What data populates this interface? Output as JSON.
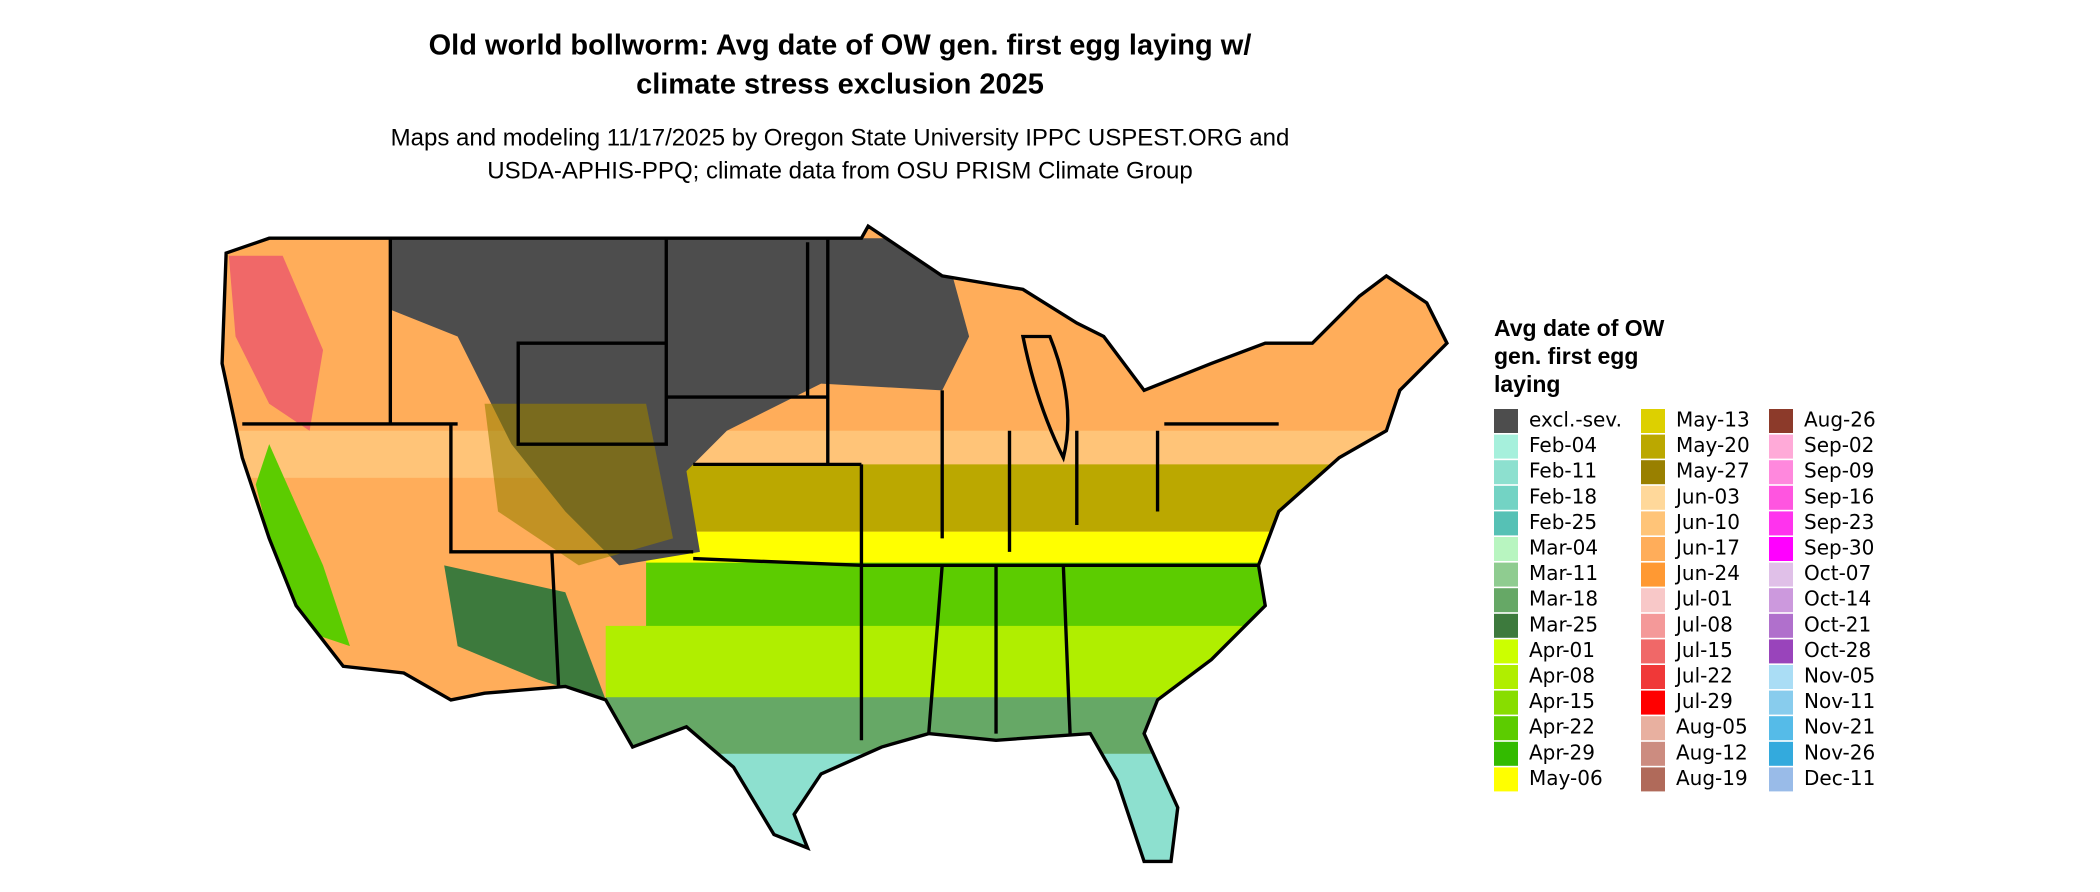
{
  "title": [
    "Old world bollworm: Avg date of OW gen. first egg laying w/",
    "climate stress exclusion 2025"
  ],
  "subtitle": [
    "Maps and modeling 11/17/2025 by Oregon State University IPPC USPEST.ORG and",
    "USDA-APHIS-PPQ; climate data from OSU PRISM Climate Group"
  ],
  "legend": {
    "title": [
      "Avg date of OW",
      "gen. first egg",
      "laying"
    ],
    "items": [
      {
        "label": "excl.-sev.",
        "color": "#4d4d4d"
      },
      {
        "label": "Feb-04",
        "color": "#a6f0dc"
      },
      {
        "label": "Feb-11",
        "color": "#8de0cf"
      },
      {
        "label": "Feb-18",
        "color": "#73d3c4"
      },
      {
        "label": "Feb-25",
        "color": "#56c1b5"
      },
      {
        "label": "Mar-04",
        "color": "#b8f5c0"
      },
      {
        "label": "Mar-11",
        "color": "#8fcc90"
      },
      {
        "label": "Mar-18",
        "color": "#66a866"
      },
      {
        "label": "Mar-25",
        "color": "#3d7a3d"
      },
      {
        "label": "Apr-01",
        "color": "#ccff00"
      },
      {
        "label": "Apr-08",
        "color": "#b0ee00"
      },
      {
        "label": "Apr-15",
        "color": "#88dd00"
      },
      {
        "label": "Apr-22",
        "color": "#5ccc00"
      },
      {
        "label": "Apr-29",
        "color": "#33bb00"
      },
      {
        "label": "May-06",
        "color": "#ffff00"
      },
      {
        "label": "May-13",
        "color": "#ddd000"
      },
      {
        "label": "May-20",
        "color": "#bba800"
      },
      {
        "label": "May-27",
        "color": "#998000"
      },
      {
        "label": "Jun-03",
        "color": "#ffd89a"
      },
      {
        "label": "Jun-10",
        "color": "#ffc478"
      },
      {
        "label": "Jun-17",
        "color": "#ffad5a"
      },
      {
        "label": "Jun-24",
        "color": "#ff9933"
      },
      {
        "label": "Jul-01",
        "color": "#f8c8c8"
      },
      {
        "label": "Jul-08",
        "color": "#f49999"
      },
      {
        "label": "Jul-15",
        "color": "#f06868"
      },
      {
        "label": "Jul-22",
        "color": "#f03838"
      },
      {
        "label": "Jul-29",
        "color": "#ff0000"
      },
      {
        "label": "Aug-05",
        "color": "#e8b0a0"
      },
      {
        "label": "Aug-12",
        "color": "#cc8c80"
      },
      {
        "label": "Aug-19",
        "color": "#b06a5a"
      },
      {
        "label": "Aug-26",
        "color": "#8c3a2a"
      },
      {
        "label": "Sep-02",
        "color": "#ffaad8"
      },
      {
        "label": "Sep-09",
        "color": "#ff88dd"
      },
      {
        "label": "Sep-16",
        "color": "#ff55e0"
      },
      {
        "label": "Sep-23",
        "color": "#ff33ee"
      },
      {
        "label": "Sep-30",
        "color": "#ff00ff"
      },
      {
        "label": "Oct-07",
        "color": "#e0c0e8"
      },
      {
        "label": "Oct-14",
        "color": "#cc99dd"
      },
      {
        "label": "Oct-21",
        "color": "#b070cc"
      },
      {
        "label": "Oct-28",
        "color": "#9944bb"
      },
      {
        "label": "Nov-05",
        "color": "#aaddf5"
      },
      {
        "label": "Nov-11",
        "color": "#88cced"
      },
      {
        "label": "Nov-21",
        "color": "#55bbe8"
      },
      {
        "label": "Nov-26",
        "color": "#33aadd"
      },
      {
        "label": "Dec-11",
        "color": "#99bbe8"
      }
    ]
  }
}
